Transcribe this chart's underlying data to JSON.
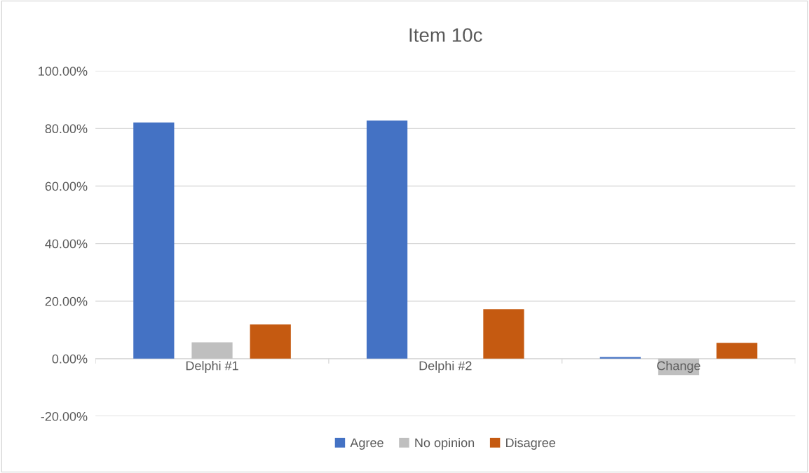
{
  "chart_data": {
    "type": "bar",
    "title": "Item 10c",
    "categories": [
      "Delphi #1",
      "Delphi #2",
      "Change"
    ],
    "series": [
      {
        "name": "Agree",
        "color": "#4472c4",
        "values": [
          82.1,
          82.8,
          0.6
        ]
      },
      {
        "name": "No opinion",
        "color": "#bfbfbf",
        "values": [
          5.7,
          0,
          -5.7
        ]
      },
      {
        "name": "Disagree",
        "color": "#c55a11",
        "values": [
          11.9,
          17.2,
          5.5
        ]
      }
    ],
    "ylim": [
      -20,
      100
    ],
    "yticks": [
      {
        "value": -20,
        "label": "-20.00%"
      },
      {
        "value": 0,
        "label": "0.00%"
      },
      {
        "value": 20,
        "label": "20.00%"
      },
      {
        "value": 40,
        "label": "40.00%"
      },
      {
        "value": 60,
        "label": "60.00%"
      },
      {
        "value": 80,
        "label": "80.00%"
      },
      {
        "value": 100,
        "label": "100.00%"
      }
    ],
    "grid": "y",
    "legend": "bottom"
  }
}
